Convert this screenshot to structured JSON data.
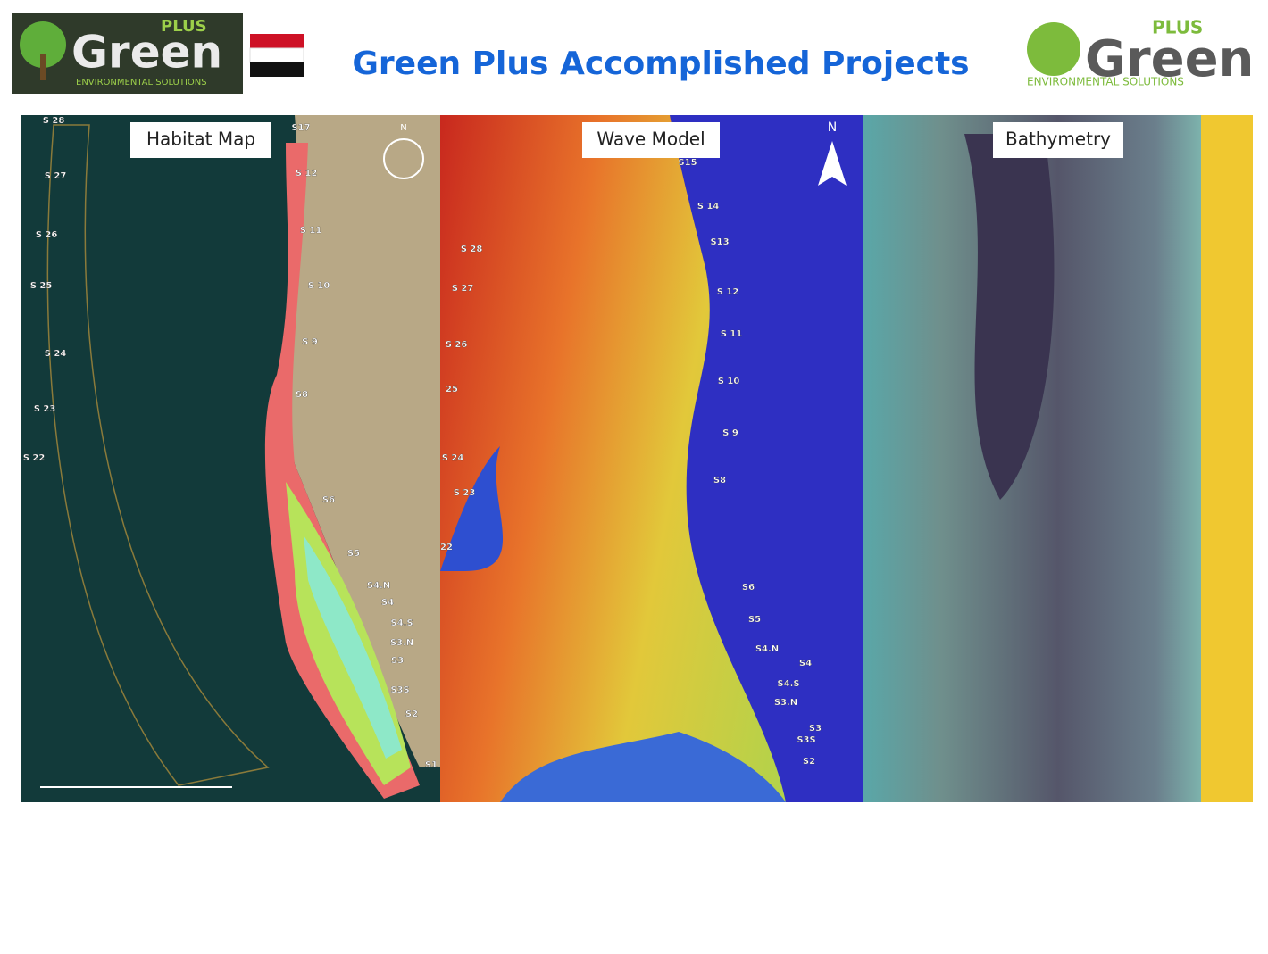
{
  "header": {
    "title": "Green Plus  Accomplished Projects",
    "left_logo": {
      "plus": "PLUS",
      "brand": "Green",
      "tagline": "ENVIRONMENTAL SOLUTIONS"
    },
    "right_logo": {
      "plus": "PLUS",
      "brand": "Green",
      "tagline": "ENVIRONMENTAL SOLUTIONS"
    }
  },
  "panels": [
    {
      "label": "Habitat Map",
      "compass": "N",
      "stations": [
        "S 28",
        "S 27",
        "S 26",
        "S 25",
        "S 24",
        "S 23",
        "S 22",
        "S17",
        "S 12",
        "S 11",
        "S 10",
        "S 9",
        "S8",
        "S6",
        "S5",
        "S4.N",
        "S4",
        "S4.S",
        "S3.N",
        "S3",
        "S3S",
        "S2",
        "S1"
      ]
    },
    {
      "label": "Wave Model",
      "compass": "N",
      "stations": [
        "S15",
        "S 14",
        "S13",
        "S 12",
        "S 11",
        "S 10",
        "S 9",
        "S8",
        "S6",
        "S5",
        "S4.N",
        "S4",
        "S4.S",
        "S3.N",
        "S3",
        "S3S",
        "S2",
        "S 28",
        "S 27",
        "S 26",
        "25",
        "S 24",
        "S 23",
        "22"
      ]
    },
    {
      "label": "Bathymetry"
    }
  ]
}
